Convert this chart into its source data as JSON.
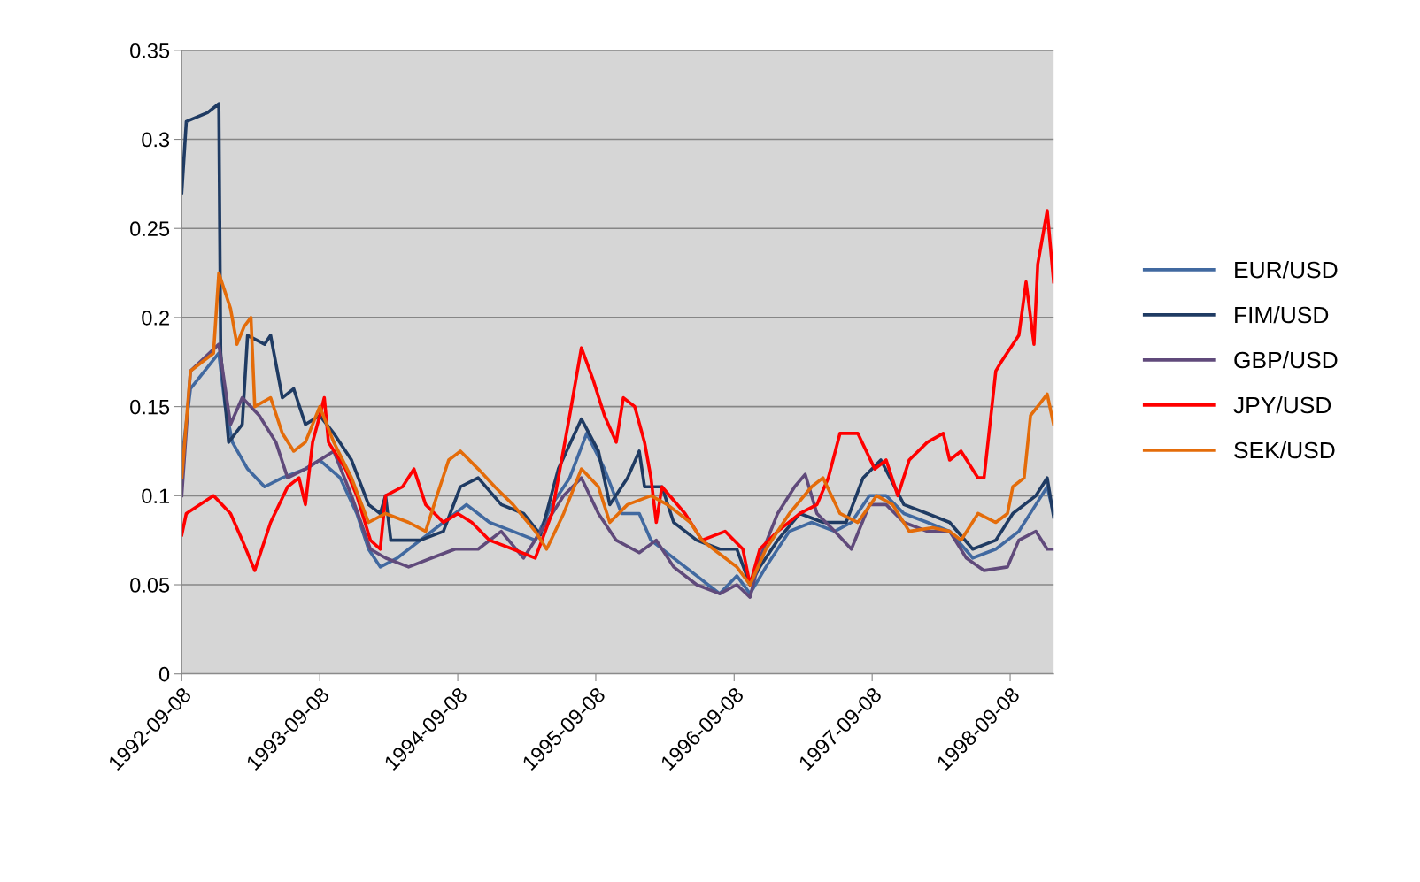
{
  "chart_data": {
    "type": "line",
    "xlim": [
      "1992-09-08",
      "1999-01-01"
    ],
    "xticks": [
      "1992-09-08",
      "1993-09-08",
      "1994-09-08",
      "1995-09-08",
      "1996-09-08",
      "1997-09-08",
      "1998-09-08"
    ],
    "ylim": [
      0,
      0.35
    ],
    "yticks": [
      0,
      0.05,
      0.1,
      0.15,
      0.2,
      0.25,
      0.3,
      0.35
    ],
    "grid": "y",
    "legend": "right",
    "marker": "none",
    "line_style": "solid",
    "series": [
      {
        "name": "EUR/USD",
        "color": "#4169a0",
        "x": [
          "1992-09-08",
          "1992-10-01",
          "1992-12-15",
          "1993-01-01",
          "1993-01-20",
          "1993-03-01",
          "1993-04-15",
          "1993-06-01",
          "1993-08-01",
          "1993-09-08",
          "1993-11-01",
          "1993-12-15",
          "1994-01-15",
          "1994-02-15",
          "1994-04-01",
          "1994-06-01",
          "1994-08-01",
          "1994-10-01",
          "1994-12-01",
          "1995-02-01",
          "1995-04-01",
          "1995-05-15",
          "1995-07-01",
          "1995-08-15",
          "1995-10-01",
          "1995-11-15",
          "1996-01-01",
          "1996-02-01",
          "1996-04-01",
          "1996-06-01",
          "1996-07-01",
          "1996-08-01",
          "1996-09-15",
          "1996-10-20",
          "1996-12-01",
          "1997-02-01",
          "1997-04-01",
          "1997-06-01",
          "1997-07-15",
          "1997-09-01",
          "1997-10-15",
          "1997-12-01",
          "1998-02-01",
          "1998-04-01",
          "1998-06-01",
          "1998-08-01",
          "1998-10-01",
          "1998-11-15",
          "1998-12-15",
          "1999-01-01"
        ],
        "values": [
          0.12,
          0.16,
          0.18,
          0.15,
          0.13,
          0.115,
          0.105,
          0.11,
          0.115,
          0.12,
          0.11,
          0.09,
          0.07,
          0.06,
          0.065,
          0.075,
          0.085,
          0.095,
          0.085,
          0.08,
          0.075,
          0.095,
          0.11,
          0.135,
          0.115,
          0.09,
          0.09,
          0.075,
          0.065,
          0.055,
          0.05,
          0.045,
          0.055,
          0.045,
          0.06,
          0.08,
          0.085,
          0.08,
          0.085,
          0.1,
          0.1,
          0.09,
          0.085,
          0.08,
          0.065,
          0.07,
          0.08,
          0.095,
          0.105,
          0.09
        ]
      },
      {
        "name": "FIM/USD",
        "color": "#1f3b63",
        "x": [
          "1992-09-08",
          "1992-09-20",
          "1992-11-15",
          "1992-12-15",
          "1992-12-20",
          "1993-01-10",
          "1993-02-15",
          "1993-03-01",
          "1993-04-15",
          "1993-05-01",
          "1993-06-01",
          "1993-07-01",
          "1993-08-01",
          "1993-09-08",
          "1993-10-15",
          "1993-12-01",
          "1994-01-15",
          "1994-02-15",
          "1994-03-01",
          "1994-03-15",
          "1994-06-01",
          "1994-08-01",
          "1994-09-15",
          "1994-11-01",
          "1995-01-01",
          "1995-03-01",
          "1995-04-15",
          "1995-06-01",
          "1995-08-01",
          "1995-09-15",
          "1995-10-15",
          "1995-12-01",
          "1996-01-01",
          "1996-01-15",
          "1996-03-01",
          "1996-04-01",
          "1996-06-01",
          "1996-08-01",
          "1996-09-15",
          "1996-10-20",
          "1996-11-15",
          "1997-01-01",
          "1997-03-01",
          "1997-05-01",
          "1997-07-01",
          "1997-08-15",
          "1997-10-01",
          "1997-12-01",
          "1998-02-01",
          "1998-04-01",
          "1998-06-01",
          "1998-08-01",
          "1998-09-15",
          "1998-11-15",
          "1998-12-15",
          "1999-01-01"
        ],
        "values": [
          0.27,
          0.31,
          0.315,
          0.32,
          0.18,
          0.13,
          0.14,
          0.19,
          0.185,
          0.19,
          0.155,
          0.16,
          0.14,
          0.145,
          0.135,
          0.12,
          0.095,
          0.09,
          0.1,
          0.075,
          0.075,
          0.08,
          0.105,
          0.11,
          0.095,
          0.09,
          0.078,
          0.115,
          0.143,
          0.125,
          0.095,
          0.11,
          0.125,
          0.105,
          0.105,
          0.085,
          0.075,
          0.07,
          0.07,
          0.05,
          0.06,
          0.075,
          0.09,
          0.085,
          0.085,
          0.11,
          0.12,
          0.095,
          0.09,
          0.085,
          0.07,
          0.075,
          0.09,
          0.1,
          0.11,
          0.088
        ]
      },
      {
        "name": "GBP/USD",
        "color": "#604a7b",
        "x": [
          "1992-09-08",
          "1992-10-01",
          "1992-12-15",
          "1993-01-15",
          "1993-02-15",
          "1993-04-01",
          "1993-05-15",
          "1993-06-15",
          "1993-08-01",
          "1993-09-08",
          "1993-10-15",
          "1993-12-01",
          "1994-01-20",
          "1994-03-01",
          "1994-05-01",
          "1994-07-01",
          "1994-09-01",
          "1994-11-01",
          "1995-01-01",
          "1995-03-01",
          "1995-05-01",
          "1995-06-15",
          "1995-08-01",
          "1995-09-15",
          "1995-11-01",
          "1996-01-01",
          "1996-02-15",
          "1996-04-01",
          "1996-06-01",
          "1996-08-01",
          "1996-09-15",
          "1996-10-20",
          "1996-11-15",
          "1997-01-01",
          "1997-02-15",
          "1997-03-15",
          "1997-04-15",
          "1997-06-01",
          "1997-07-15",
          "1997-09-01",
          "1997-10-15",
          "1997-12-01",
          "1998-02-01",
          "1998-04-01",
          "1998-05-15",
          "1998-07-01",
          "1998-09-01",
          "1998-10-01",
          "1998-11-15",
          "1998-12-15",
          "1999-01-01"
        ],
        "values": [
          0.1,
          0.17,
          0.185,
          0.14,
          0.155,
          0.145,
          0.13,
          0.11,
          0.115,
          0.12,
          0.125,
          0.1,
          0.07,
          0.065,
          0.06,
          0.065,
          0.07,
          0.07,
          0.08,
          0.065,
          0.085,
          0.1,
          0.11,
          0.09,
          0.075,
          0.068,
          0.075,
          0.06,
          0.05,
          0.045,
          0.05,
          0.043,
          0.065,
          0.09,
          0.105,
          0.112,
          0.09,
          0.08,
          0.07,
          0.095,
          0.095,
          0.085,
          0.08,
          0.08,
          0.065,
          0.058,
          0.06,
          0.075,
          0.08,
          0.07,
          0.07
        ]
      },
      {
        "name": "JPY/USD",
        "color": "#ff0000",
        "x": [
          "1992-09-08",
          "1992-09-20",
          "1992-12-01",
          "1993-01-15",
          "1993-02-15",
          "1993-03-20",
          "1993-05-01",
          "1993-06-15",
          "1993-07-15",
          "1993-08-01",
          "1993-08-20",
          "1993-09-08",
          "1993-09-20",
          "1993-10-01",
          "1993-11-15",
          "1993-12-15",
          "1994-01-20",
          "1994-02-15",
          "1994-03-01",
          "1994-04-15",
          "1994-05-15",
          "1994-06-15",
          "1994-08-01",
          "1994-09-08",
          "1994-10-15",
          "1994-12-01",
          "1995-02-01",
          "1995-04-01",
          "1995-05-15",
          "1995-07-01",
          "1995-08-01",
          "1995-09-01",
          "1995-10-01",
          "1995-11-01",
          "1995-11-20",
          "1995-12-20",
          "1996-01-15",
          "1996-02-01",
          "1996-02-15",
          "1996-03-01",
          "1996-05-01",
          "1996-06-15",
          "1996-08-15",
          "1996-10-01",
          "1996-10-20",
          "1996-11-15",
          "1997-01-01",
          "1997-03-01",
          "1997-04-15",
          "1997-05-15",
          "1997-06-15",
          "1997-08-01",
          "1997-09-15",
          "1997-10-15",
          "1997-11-15",
          "1997-12-15",
          "1998-02-01",
          "1998-03-15",
          "1998-04-01",
          "1998-05-01",
          "1998-06-15",
          "1998-07-01",
          "1998-08-01",
          "1998-08-15",
          "1998-10-01",
          "1998-10-20",
          "1998-11-10",
          "1998-11-20",
          "1998-12-15",
          "1999-01-01"
        ],
        "values": [
          0.078,
          0.09,
          0.1,
          0.09,
          0.075,
          0.058,
          0.085,
          0.105,
          0.11,
          0.095,
          0.13,
          0.145,
          0.155,
          0.13,
          0.115,
          0.1,
          0.075,
          0.07,
          0.1,
          0.105,
          0.115,
          0.095,
          0.085,
          0.09,
          0.085,
          0.075,
          0.07,
          0.065,
          0.09,
          0.145,
          0.183,
          0.165,
          0.145,
          0.13,
          0.155,
          0.15,
          0.13,
          0.11,
          0.085,
          0.105,
          0.09,
          0.075,
          0.08,
          0.07,
          0.05,
          0.07,
          0.08,
          0.09,
          0.095,
          0.11,
          0.135,
          0.135,
          0.115,
          0.12,
          0.1,
          0.12,
          0.13,
          0.135,
          0.12,
          0.125,
          0.11,
          0.11,
          0.17,
          0.175,
          0.19,
          0.22,
          0.185,
          0.23,
          0.26,
          0.22
        ]
      },
      {
        "name": "SEK/USD",
        "color": "#e46c0a",
        "x": [
          "1992-09-08",
          "1992-10-01",
          "1992-12-01",
          "1992-12-15",
          "1993-01-15",
          "1993-02-01",
          "1993-02-20",
          "1993-03-10",
          "1993-03-20",
          "1993-05-01",
          "1993-06-01",
          "1993-07-01",
          "1993-08-01",
          "1993-09-08",
          "1993-10-15",
          "1993-12-01",
          "1994-01-15",
          "1994-03-01",
          "1994-05-01",
          "1994-06-15",
          "1994-07-15",
          "1994-08-15",
          "1994-09-15",
          "1994-11-01",
          "1994-12-15",
          "1995-02-01",
          "1995-04-01",
          "1995-05-01",
          "1995-06-15",
          "1995-08-01",
          "1995-09-15",
          "1995-10-15",
          "1995-12-01",
          "1996-02-01",
          "1996-03-15",
          "1996-05-15",
          "1996-06-15",
          "1996-07-15",
          "1996-08-15",
          "1996-09-15",
          "1996-10-20",
          "1996-12-01",
          "1997-02-01",
          "1997-04-01",
          "1997-05-01",
          "1997-06-15",
          "1997-08-01",
          "1997-09-20",
          "1997-11-01",
          "1997-12-15",
          "1998-02-15",
          "1998-04-01",
          "1998-05-01",
          "1998-06-15",
          "1998-08-01",
          "1998-09-01",
          "1998-09-15",
          "1998-10-15",
          "1998-11-01",
          "1998-12-15",
          "1999-01-01"
        ],
        "values": [
          0.11,
          0.17,
          0.18,
          0.225,
          0.205,
          0.185,
          0.195,
          0.2,
          0.15,
          0.155,
          0.135,
          0.125,
          0.13,
          0.15,
          0.13,
          0.11,
          0.085,
          0.09,
          0.085,
          0.08,
          0.1,
          0.12,
          0.125,
          0.115,
          0.105,
          0.095,
          0.08,
          0.07,
          0.09,
          0.115,
          0.105,
          0.085,
          0.095,
          0.1,
          0.095,
          0.085,
          0.075,
          0.07,
          0.065,
          0.06,
          0.05,
          0.07,
          0.09,
          0.105,
          0.11,
          0.09,
          0.085,
          0.1,
          0.095,
          0.08,
          0.082,
          0.08,
          0.075,
          0.09,
          0.085,
          0.09,
          0.105,
          0.11,
          0.145,
          0.157,
          0.14
        ]
      }
    ]
  }
}
